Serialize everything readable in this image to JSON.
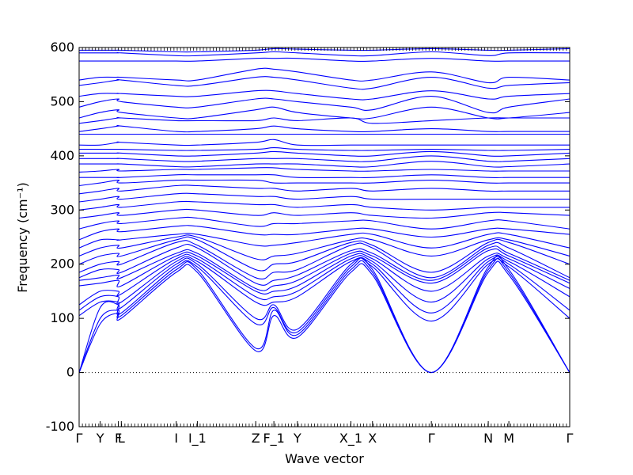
{
  "chart_data": {
    "type": "line",
    "title": "",
    "xlabel": "Wave vector",
    "ylabel": "Frequency (cm⁻¹)",
    "ylim": [
      -100,
      600
    ],
    "yticks": [
      -100,
      0,
      100,
      200,
      300,
      400,
      500,
      600
    ],
    "xlim": [
      0,
      1
    ],
    "high_symmetry_points": [
      {
        "label": "Γ",
        "x": 0.0
      },
      {
        "label": "Y",
        "x": 0.043
      },
      {
        "label": "F",
        "x": 0.08
      },
      {
        "label": "L",
        "x": 0.086
      },
      {
        "label": "I",
        "x": 0.198
      },
      {
        "label": "I_1",
        "x": 0.241
      },
      {
        "label": "Z",
        "x": 0.36
      },
      {
        "label": "F_1",
        "x": 0.397
      },
      {
        "label": "Y",
        "x": 0.445
      },
      {
        "label": "X_1",
        "x": 0.554
      },
      {
        "label": "X",
        "x": 0.598
      },
      {
        "label": "Γ",
        "x": 0.718
      },
      {
        "label": "N",
        "x": 0.834
      },
      {
        "label": "M",
        "x": 0.876
      },
      {
        "label": "Γ",
        "x": 1.0
      }
    ],
    "zero_line": {
      "y": 0,
      "style": "dotted"
    },
    "series_color": "#0000ff",
    "grid": false,
    "series": [
      {
        "y": [
          0,
          90,
          110,
          100,
          185,
          185,
          40,
          105,
          65,
          185,
          180,
          0,
          185,
          180,
          0
        ]
      },
      {
        "y": [
          0,
          100,
          115,
          105,
          190,
          190,
          45,
          115,
          70,
          190,
          185,
          0,
          190,
          185,
          0
        ]
      },
      {
        "y": [
          0,
          120,
          125,
          110,
          195,
          195,
          90,
          120,
          75,
          195,
          190,
          0,
          195,
          190,
          0
        ]
      },
      {
        "y": [
          105,
          130,
          130,
          120,
          200,
          200,
          100,
          125,
          80,
          200,
          195,
          95,
          200,
          195,
          100
        ]
      },
      {
        "y": [
          115,
          140,
          140,
          130,
          205,
          205,
          130,
          130,
          140,
          205,
          200,
          110,
          205,
          200,
          115
        ]
      },
      {
        "y": [
          125,
          150,
          150,
          145,
          210,
          210,
          140,
          140,
          150,
          210,
          205,
          130,
          210,
          205,
          140
        ]
      },
      {
        "y": [
          160,
          165,
          170,
          160,
          215,
          215,
          150,
          150,
          160,
          215,
          210,
          150,
          215,
          210,
          155
        ]
      },
      {
        "y": [
          170,
          175,
          180,
          175,
          220,
          220,
          155,
          160,
          170,
          220,
          215,
          165,
          225,
          215,
          165
        ]
      },
      {
        "y": [
          175,
          190,
          190,
          185,
          230,
          230,
          165,
          170,
          180,
          225,
          220,
          170,
          230,
          220,
          170
        ]
      },
      {
        "y": [
          185,
          200,
          205,
          200,
          240,
          235,
          175,
          185,
          190,
          235,
          230,
          175,
          235,
          230,
          175
        ]
      },
      {
        "y": [
          200,
          215,
          220,
          215,
          245,
          245,
          190,
          200,
          205,
          240,
          235,
          185,
          240,
          240,
          200
        ]
      },
      {
        "y": [
          215,
          230,
          235,
          230,
          250,
          250,
          210,
          215,
          220,
          245,
          245,
          215,
          245,
          245,
          215
        ]
      },
      {
        "y": [
          230,
          245,
          245,
          245,
          255,
          255,
          235,
          235,
          240,
          255,
          255,
          230,
          255,
          255,
          230
        ]
      },
      {
        "y": [
          245,
          260,
          265,
          260,
          270,
          270,
          255,
          255,
          255,
          265,
          265,
          250,
          265,
          265,
          255
        ]
      },
      {
        "y": [
          265,
          275,
          280,
          275,
          285,
          285,
          270,
          275,
          275,
          280,
          280,
          265,
          280,
          280,
          265
        ]
      },
      {
        "y": [
          285,
          290,
          295,
          290,
          300,
          300,
          290,
          295,
          290,
          295,
          290,
          285,
          295,
          295,
          290
        ]
      },
      {
        "y": [
          300,
          305,
          310,
          305,
          315,
          315,
          310,
          310,
          305,
          310,
          305,
          300,
          305,
          305,
          305
        ]
      },
      {
        "y": [
          315,
          320,
          325,
          320,
          330,
          330,
          325,
          325,
          320,
          325,
          320,
          320,
          320,
          320,
          320
        ]
      },
      {
        "y": [
          330,
          335,
          340,
          335,
          345,
          345,
          340,
          340,
          335,
          340,
          335,
          340,
          335,
          335,
          335
        ]
      },
      {
        "y": [
          345,
          350,
          355,
          350,
          355,
          355,
          355,
          350,
          350,
          350,
          350,
          355,
          350,
          350,
          350
        ]
      },
      {
        "y": [
          360,
          360,
          360,
          360,
          365,
          365,
          365,
          365,
          360,
          360,
          360,
          365,
          360,
          360,
          360
        ]
      },
      {
        "y": [
          370,
          372,
          375,
          372,
          375,
          375,
          378,
          378,
          375,
          372,
          372,
          375,
          372,
          372,
          372
        ]
      },
      {
        "y": [
          385,
          385,
          385,
          385,
          380,
          380,
          385,
          385,
          385,
          380,
          380,
          390,
          380,
          380,
          385
        ]
      },
      {
        "y": [
          395,
          395,
          395,
          395,
          390,
          390,
          395,
          395,
          395,
          390,
          390,
          400,
          390,
          390,
          395
        ]
      },
      {
        "y": [
          405,
          405,
          405,
          405,
          400,
          400,
          405,
          408,
          405,
          400,
          400,
          408,
          400,
          400,
          405
        ]
      },
      {
        "y": [
          412,
          412,
          412,
          412,
          410,
          410,
          412,
          415,
          412,
          410,
          410,
          412,
          410,
          410,
          412
        ]
      },
      {
        "y": [
          420,
          420,
          425,
          425,
          420,
          420,
          425,
          430,
          420,
          420,
          420,
          420,
          420,
          420,
          420
        ]
      },
      {
        "y": [
          440,
          440,
          440,
          440,
          440,
          440,
          440,
          440,
          440,
          440,
          440,
          440,
          440,
          440,
          440
        ]
      },
      {
        "y": [
          445,
          450,
          455,
          455,
          445,
          445,
          450,
          455,
          450,
          445,
          445,
          450,
          445,
          445,
          445
        ]
      },
      {
        "y": [
          460,
          465,
          470,
          470,
          465,
          465,
          465,
          470,
          465,
          470,
          460,
          465,
          470,
          470,
          470
        ]
      },
      {
        "y": [
          470,
          480,
          485,
          480,
          470,
          470,
          485,
          490,
          480,
          470,
          470,
          490,
          470,
          470,
          480
        ]
      },
      {
        "y": [
          490,
          500,
          505,
          500,
          490,
          490,
          505,
          505,
          500,
          490,
          485,
          510,
          480,
          490,
          505
        ]
      },
      {
        "y": [
          510,
          515,
          515,
          515,
          510,
          510,
          520,
          520,
          515,
          505,
          505,
          520,
          505,
          510,
          515
        ]
      },
      {
        "y": [
          530,
          535,
          540,
          540,
          530,
          530,
          545,
          545,
          540,
          525,
          525,
          545,
          525,
          530,
          535
        ]
      },
      {
        "y": [
          540,
          545,
          545,
          545,
          540,
          540,
          560,
          560,
          555,
          540,
          540,
          555,
          535,
          545,
          540
        ]
      },
      {
        "y": [
          575,
          575,
          575,
          575,
          575,
          575,
          580,
          580,
          580,
          575,
          575,
          580,
          575,
          575,
          575
        ]
      },
      {
        "y": [
          590,
          590,
          590,
          590,
          585,
          585,
          590,
          592,
          590,
          585,
          585,
          592,
          585,
          590,
          590
        ]
      },
      {
        "y": [
          595,
          595,
          595,
          595,
          592,
          592,
          595,
          598,
          597,
          595,
          595,
          598,
          595,
          595,
          598
        ]
      }
    ]
  }
}
